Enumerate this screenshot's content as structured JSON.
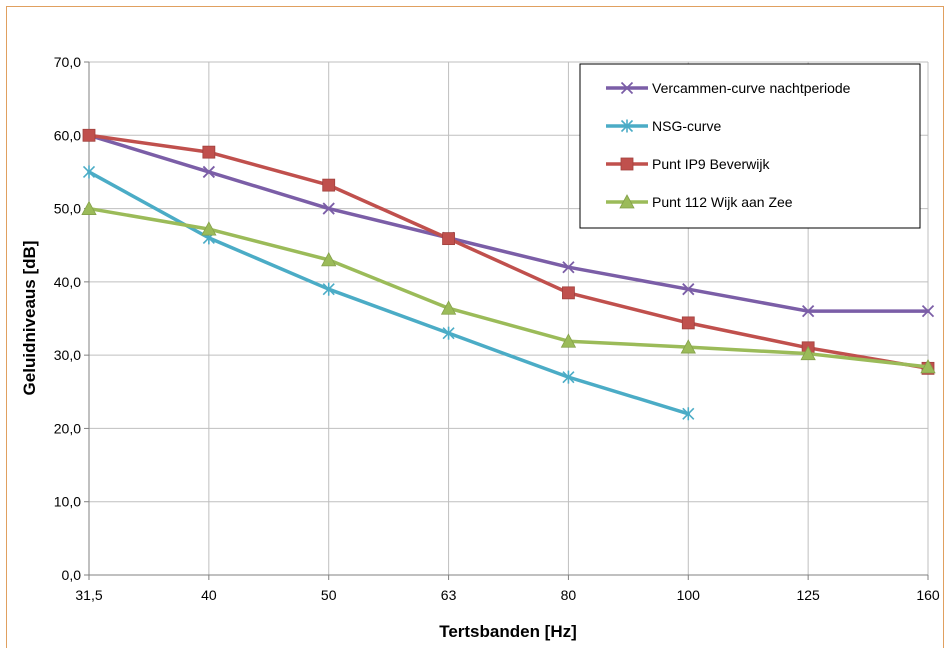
{
  "chart_data": {
    "type": "line",
    "title": "",
    "xlabel": "Tertsbanden [Hz]",
    "ylabel": "Geluidniveaus [dB]",
    "categories": [
      "31,5",
      "40",
      "50",
      "63",
      "80",
      "100",
      "125",
      "160"
    ],
    "y_tick_labels": [
      "0,0",
      "10,0",
      "20,0",
      "30,0",
      "40,0",
      "50,0",
      "60,0",
      "70,0"
    ],
    "ylim": [
      0,
      70
    ],
    "grid": true,
    "legend_position": "top-right",
    "series": [
      {
        "name": "Vercammen-curve nachtperiode",
        "color": "#7b5ea7",
        "marker": "x",
        "values": [
          60,
          55,
          50,
          46,
          42,
          39,
          36,
          36
        ]
      },
      {
        "name": "NSG-curve",
        "color": "#4bacc6",
        "marker": "star",
        "values": [
          55,
          46,
          39,
          33,
          27,
          22,
          null,
          null
        ]
      },
      {
        "name": "Punt IP9 Beverwijk",
        "color": "#c0504d",
        "marker": "square",
        "values": [
          60,
          57.7,
          53.2,
          45.9,
          38.5,
          34.4,
          31,
          28.2
        ]
      },
      {
        "name": "Punt 112 Wijk aan Zee",
        "color": "#9bbb59",
        "marker": "triangle",
        "values": [
          50,
          47.2,
          43,
          36.4,
          31.9,
          31.1,
          30.2,
          28.4
        ]
      }
    ]
  }
}
